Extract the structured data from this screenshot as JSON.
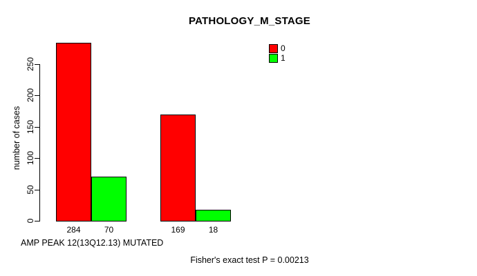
{
  "figure": {
    "background": "#ffffff",
    "text_color": "#000000"
  },
  "chart_data": {
    "type": "bar",
    "title": "PATHOLOGY_M_STAGE",
    "ylabel": "number of cases",
    "xlabel": "AMP PEAK 12(13Q12.13) MUTATED",
    "footnote": "Fisher's exact test P = 0.00213",
    "ylim": [
      0,
      290
    ],
    "yticks": [
      0,
      50,
      100,
      150,
      200,
      250
    ],
    "grid": false,
    "legend_position": "top-right",
    "legend": [
      {
        "label": "0",
        "color": "#ff0000"
      },
      {
        "label": "1",
        "color": "#00ff00"
      }
    ],
    "series": [
      {
        "name": "0",
        "color": "#ff0000",
        "values": [
          284,
          169
        ]
      },
      {
        "name": "1",
        "color": "#00ff00",
        "values": [
          70,
          18
        ]
      }
    ],
    "value_labels": [
      [
        "284",
        "70"
      ],
      [
        "169",
        "18"
      ]
    ]
  }
}
